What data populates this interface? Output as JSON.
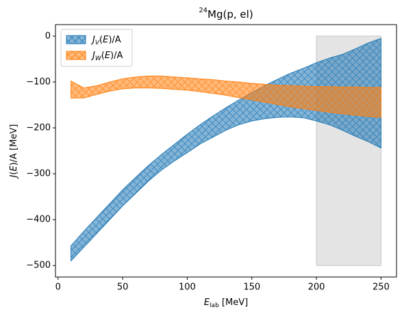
{
  "chart_data": {
    "type": "band",
    "title": [
      "24",
      "Mg(p, el)"
    ],
    "xlabel": [
      "E",
      "lab",
      " [MeV]"
    ],
    "ylabel": [
      "J",
      "(",
      "E",
      ")/A [MeV]"
    ],
    "x": [
      10,
      20,
      30,
      40,
      50,
      60,
      70,
      80,
      90,
      100,
      110,
      120,
      130,
      140,
      150,
      160,
      170,
      180,
      190,
      200,
      210,
      220,
      230,
      240,
      250
    ],
    "series": [
      {
        "name": [
          "J",
          "V",
          "(",
          "E",
          ")/A"
        ],
        "color": "#1f77b4",
        "upper": [
          -457,
          -425,
          -395,
          -365,
          -335,
          -308,
          -282,
          -258,
          -236,
          -214,
          -193,
          -174,
          -156,
          -139,
          -123,
          -108,
          -94,
          -81,
          -70,
          -58,
          -48,
          -40,
          -28,
          -15,
          -5
        ],
        "lower": [
          -490,
          -460,
          -430,
          -400,
          -370,
          -343,
          -316,
          -292,
          -272,
          -254,
          -235,
          -220,
          -205,
          -193,
          -185,
          -180,
          -177,
          -176,
          -178,
          -185,
          -193,
          -205,
          -218,
          -230,
          -244
        ]
      },
      {
        "name": [
          "J",
          "W",
          "(",
          "E",
          ")/A"
        ],
        "color": "#ff7f0e",
        "upper": [
          -98,
          -113,
          -108,
          -100,
          -93,
          -89,
          -87,
          -87,
          -89,
          -91,
          -93,
          -95,
          -98,
          -100,
          -103,
          -105,
          -107,
          -108,
          -109,
          -110,
          -110,
          -111,
          -111,
          -112,
          -112
        ],
        "lower": [
          -135,
          -135,
          -127,
          -120,
          -115,
          -113,
          -113,
          -114,
          -116,
          -118,
          -121,
          -125,
          -129,
          -134,
          -139,
          -144,
          -149,
          -154,
          -158,
          -162,
          -166,
          -169,
          -172,
          -175,
          -177
        ]
      }
    ],
    "shaded_region": {
      "x": [
        200,
        250
      ],
      "y": [
        -500,
        0
      ],
      "color": "#d9d9d9"
    },
    "xlim": [
      -2,
      262
    ],
    "ylim": [
      -525,
      25
    ],
    "xticks": [
      0,
      50,
      100,
      150,
      200,
      250
    ],
    "yticks": [
      {
        "value": 0,
        "label": "0"
      },
      {
        "value": -100,
        "label": "−100"
      },
      {
        "value": -200,
        "label": "−200"
      },
      {
        "value": -300,
        "label": "−300"
      },
      {
        "value": -400,
        "label": "−400"
      },
      {
        "value": -500,
        "label": "−500"
      }
    ],
    "legend": "upper left"
  }
}
